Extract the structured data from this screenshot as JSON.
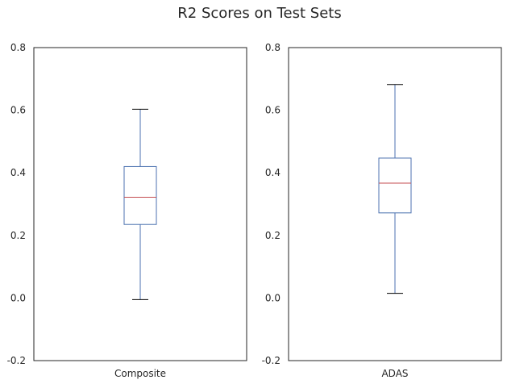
{
  "title": "R2 Scores on Test Sets",
  "colors": {
    "box": "#4c72b0",
    "median": "#c44e52",
    "cap": "#000000",
    "frame": "#262626"
  },
  "chart_data": [
    {
      "type": "box",
      "categories": [
        "Composite"
      ],
      "ylim": [
        -0.2,
        0.8
      ],
      "yticks": [
        "-0.2",
        "0.0",
        "0.2",
        "0.4",
        "0.6",
        "0.8"
      ],
      "grid": false,
      "boxes": [
        {
          "label": "Composite",
          "whisker_low": -0.005,
          "q1": 0.235,
          "median": 0.322,
          "q3": 0.42,
          "whisker_high": 0.603
        }
      ]
    },
    {
      "type": "box",
      "categories": [
        "ADAS"
      ],
      "ylim": [
        -0.2,
        0.8
      ],
      "yticks": [
        "-0.2",
        "0.0",
        "0.2",
        "0.4",
        "0.6",
        "0.8"
      ],
      "grid": false,
      "boxes": [
        {
          "label": "ADAS",
          "whisker_low": 0.015,
          "q1": 0.272,
          "median": 0.367,
          "q3": 0.447,
          "whisker_high": 0.682
        }
      ]
    }
  ]
}
